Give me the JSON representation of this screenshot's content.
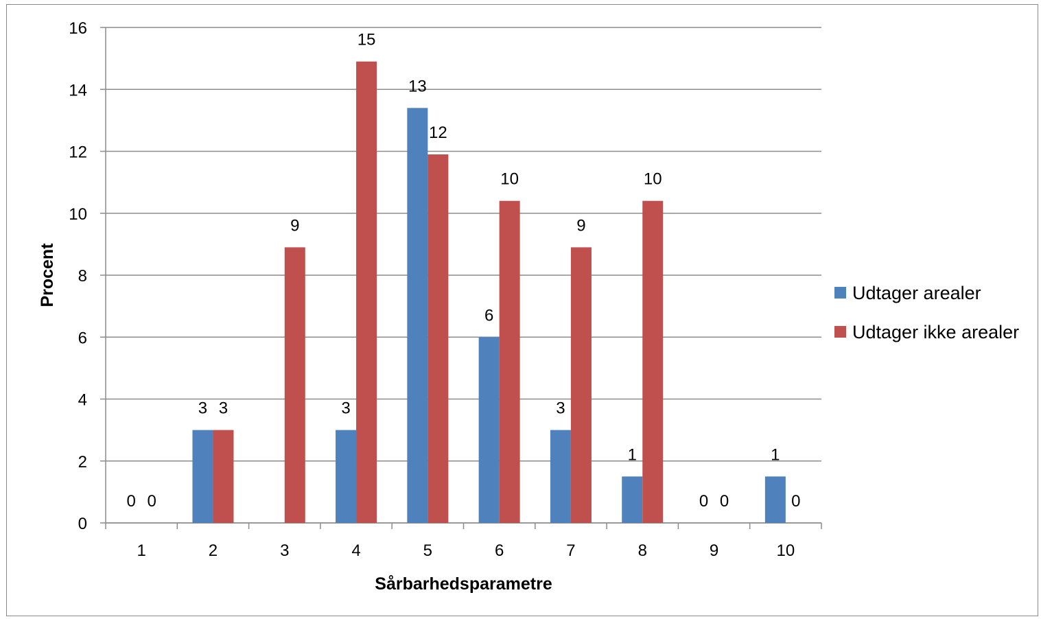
{
  "chart_data": {
    "type": "bar",
    "categories": [
      "1",
      "2",
      "3",
      "4",
      "5",
      "6",
      "7",
      "8",
      "9",
      "10"
    ],
    "series": [
      {
        "name": "Udtager arealer",
        "color": "#4F81BD",
        "values": [
          0,
          3,
          0,
          3,
          13.4,
          6,
          3,
          1.5,
          0,
          1.5
        ],
        "data_labels": [
          "0",
          "3",
          "",
          "3",
          "13",
          "6",
          "3",
          "1",
          "0",
          "1"
        ]
      },
      {
        "name": "Udtager ikke arealer",
        "color": "#C0504D",
        "values": [
          0,
          3,
          8.9,
          14.9,
          11.9,
          10.4,
          8.9,
          10.4,
          0,
          0
        ],
        "data_labels": [
          "0",
          "3",
          "9",
          "15",
          "12",
          "10",
          "9",
          "10",
          "0",
          "0"
        ]
      }
    ],
    "xlabel": "Sårbarhedsparametre",
    "ylabel": "Procent",
    "ylim": [
      0,
      16
    ],
    "yticks": [
      "0",
      "2",
      "4",
      "6",
      "8",
      "10",
      "12",
      "14",
      "16"
    ],
    "grid": true,
    "legend_position": "right",
    "gridline_color": "#8c8c8c"
  }
}
